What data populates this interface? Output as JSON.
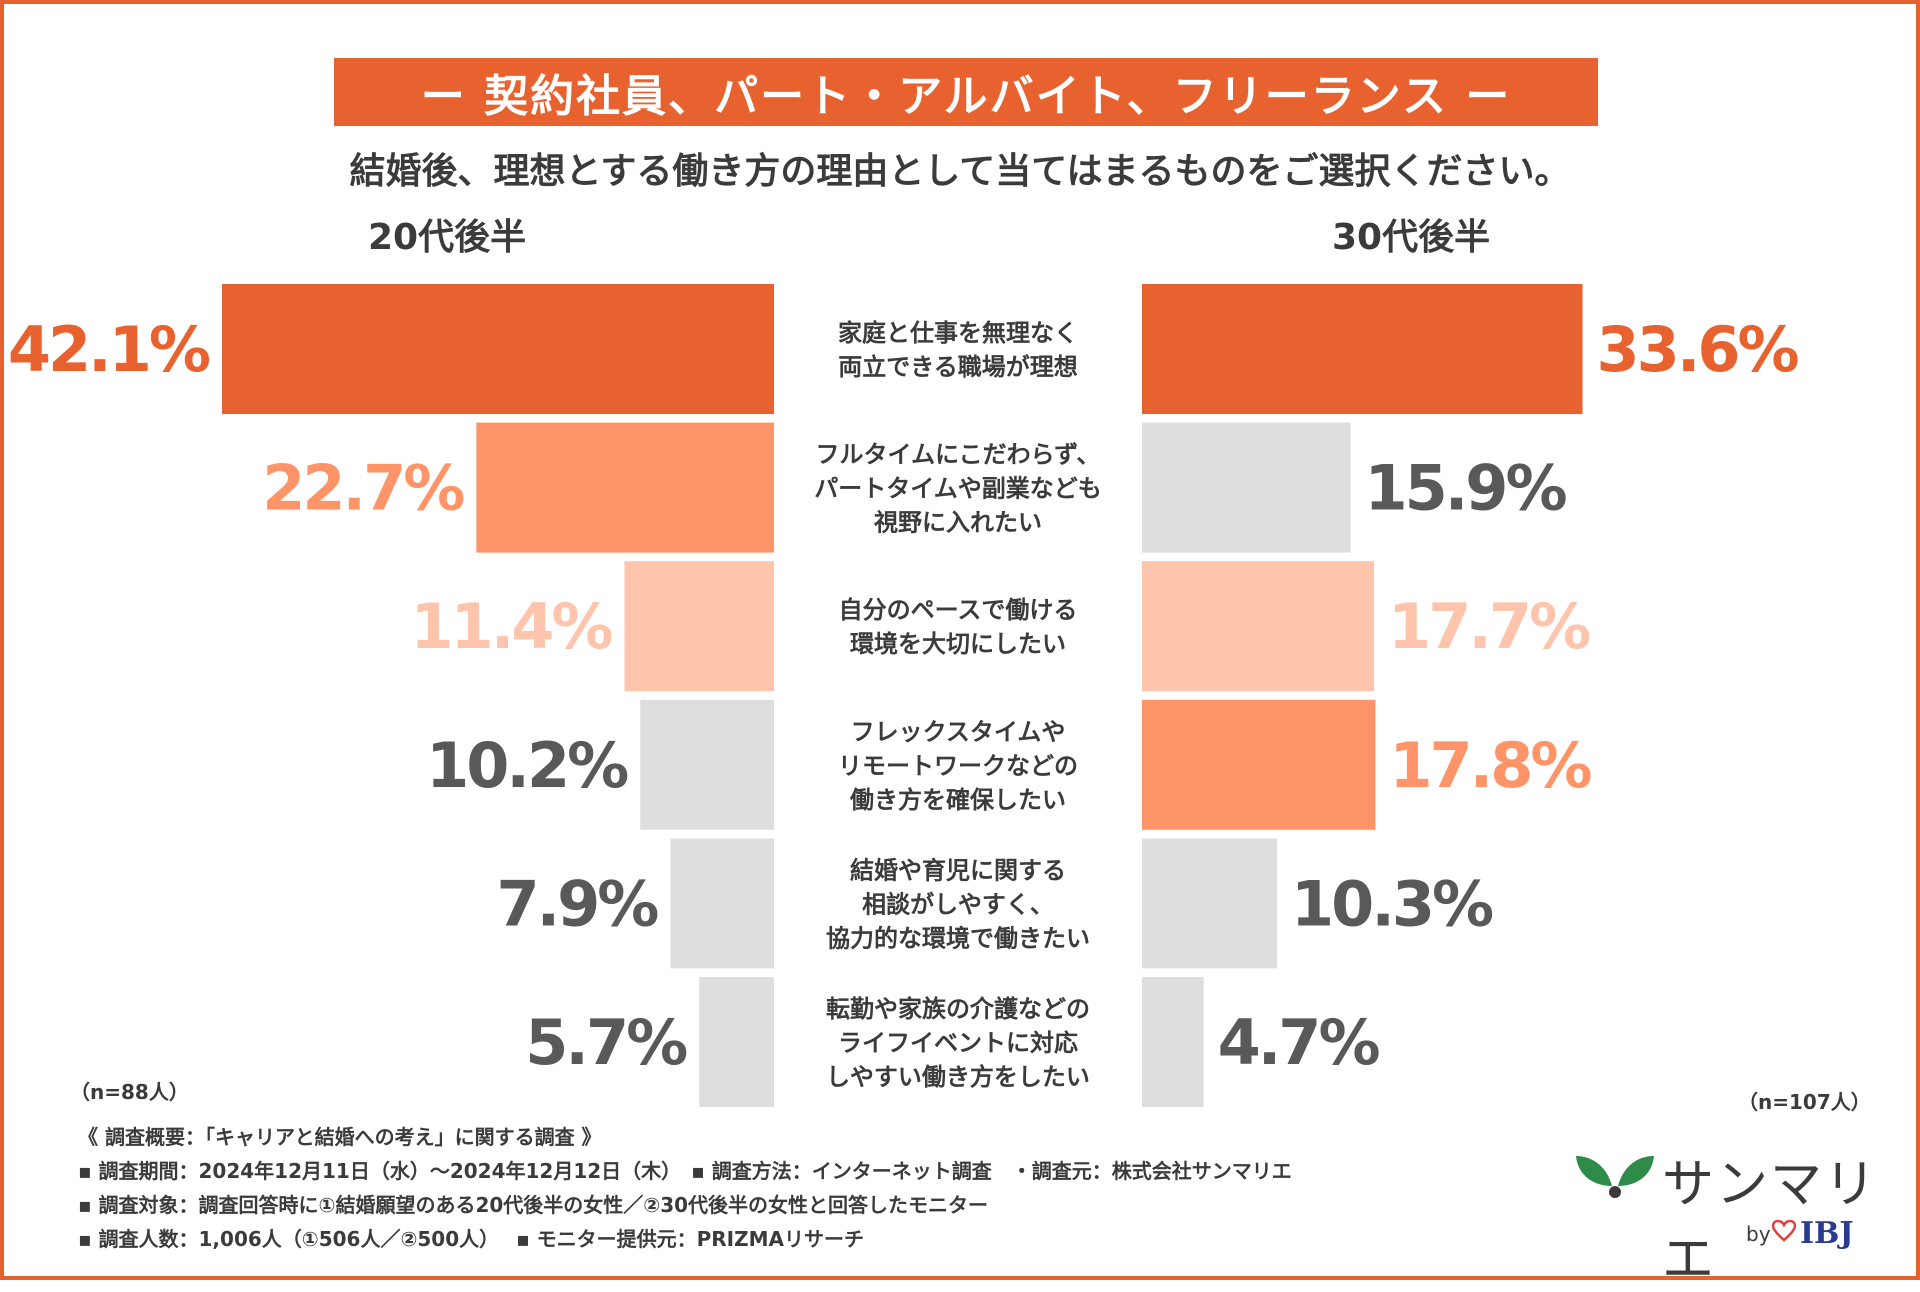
{
  "title": "ー 契約社員、パート・アルバイト、フリーランス ー",
  "question": "結婚後、理想とする働き方の理由として当てはまるものをご選択ください。",
  "chart_data": {
    "type": "bar",
    "categories": [
      "家庭と仕事を無理なく\n両立できる職場が理想",
      "フルタイムにこだわらず、\nパートタイムや副業なども\n視野に入れたい",
      "自分のペースで働ける\n環境を大切にしたい",
      "フレックスタイムや\nリモートワークなどの\n働き方を確保したい",
      "結婚や育児に関する\n相談がしやすく、\n協力的な環境で働きたい",
      "転勤や家族の介護などの\nライフイベントに対応\nしやすい働き方をしたい"
    ],
    "series": [
      {
        "name": "20代後半",
        "values": [
          42.1,
          22.7,
          11.4,
          10.2,
          7.9,
          5.7
        ],
        "labels": [
          "42.1%",
          "22.7%",
          "11.4%",
          "10.2%",
          "7.9%",
          "5.7%"
        ],
        "colors": [
          "#e8622f",
          "#ff9468",
          "#ffc4ac",
          "#dedede",
          "#dedede",
          "#dedede"
        ],
        "label_colors": [
          "#e8622f",
          "#ff9468",
          "#ffc4ac",
          "#595959",
          "#595959",
          "#595959"
        ],
        "n": "（n=88人）"
      },
      {
        "name": "30代後半",
        "values": [
          33.6,
          15.9,
          17.7,
          17.8,
          10.3,
          4.7
        ],
        "labels": [
          "33.6%",
          "15.9%",
          "17.7%",
          "17.8%",
          "10.3%",
          "4.7%"
        ],
        "colors": [
          "#e8622f",
          "#dedede",
          "#ffc4ac",
          "#ff9468",
          "#dedede",
          "#dedede"
        ],
        "label_colors": [
          "#e8622f",
          "#595959",
          "#ffc4ac",
          "#ff9468",
          "#595959",
          "#595959"
        ],
        "n": "（n=107人）"
      }
    ]
  },
  "notes": {
    "overview": "《 調査概要：「キャリアと結婚への考え」に関する調査 》",
    "period": "▪ 調査期間：2024年12月11日（水）～2024年12月12日（木）　▪ 調査方法：インターネット調査　・調査元：株式会社サンマリエ",
    "target": "▪ 調査対象：調査回答時に①結婚願望のある20代後半の女性／②30代後半の女性と回答したモニター",
    "count": " ▪ 調査人数：1,006人（①506人／②500人）　 ▪ モニター提供元：PRIZMAリサーチ"
  },
  "logo": {
    "name": "サンマリエ",
    "by": "by",
    "partner": "IBJ",
    "leaf_color": "#2e8b4a",
    "heart_color": "#e0403a"
  }
}
